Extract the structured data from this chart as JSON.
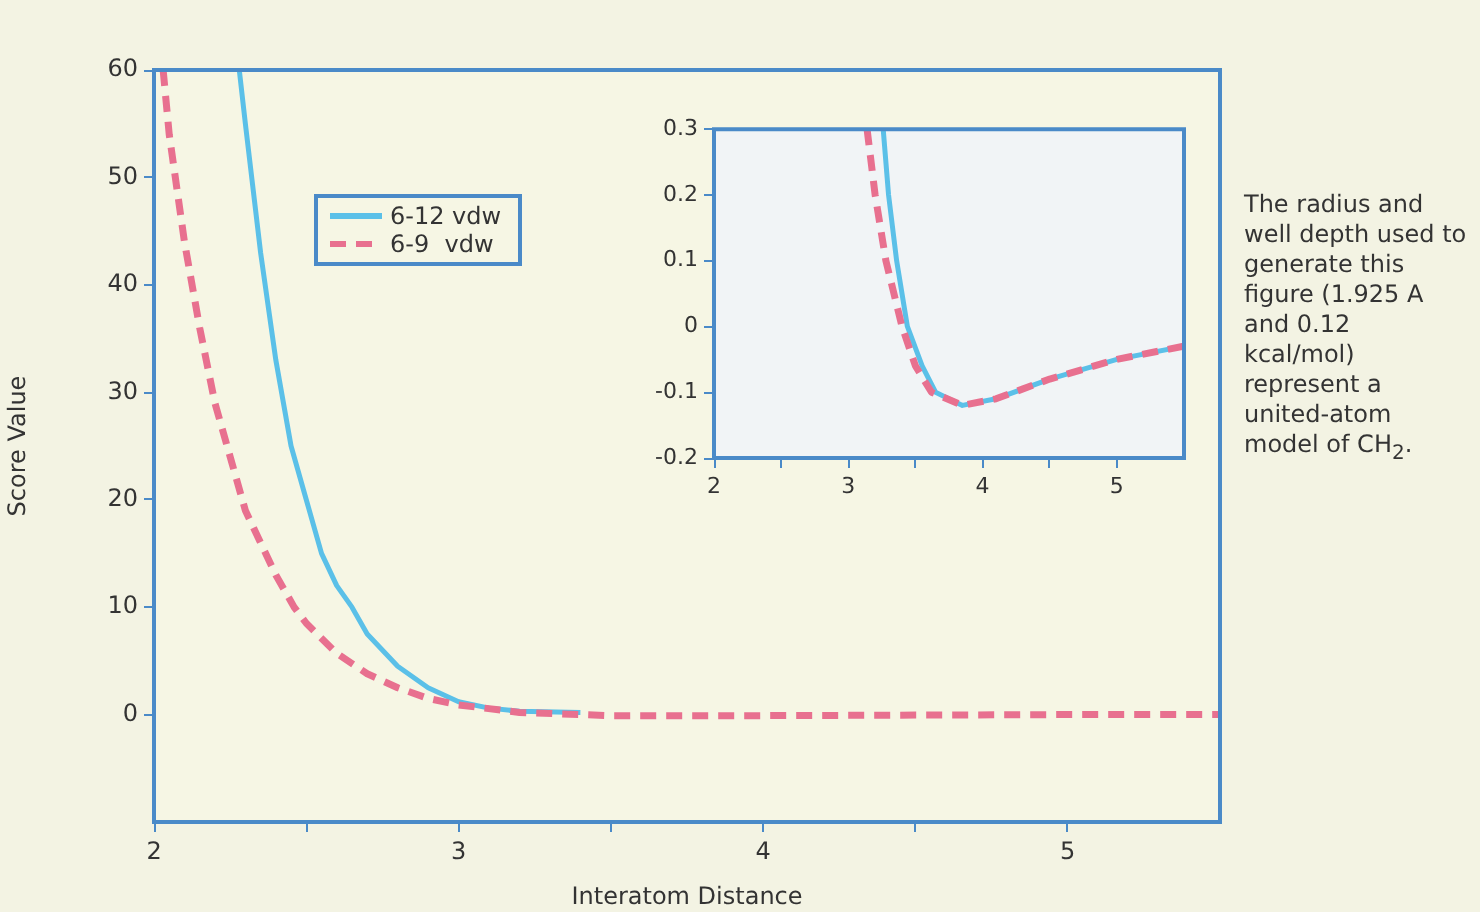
{
  "chart_data": [
    {
      "type": "line",
      "xlabel": "Interatom Distance",
      "ylabel": "Score Value",
      "xlim": [
        2,
        5.5
      ],
      "xticks": [
        2,
        {
          "value": 2.5,
          "label": null
        },
        3,
        {
          "value": 3.5,
          "label": null
        },
        4,
        {
          "value": 4.5,
          "label": null
        },
        5
      ],
      "ylim": [
        -10,
        60
      ],
      "yticks": [
        0,
        10,
        20,
        30,
        40,
        50,
        60
      ],
      "legend": "top left",
      "marker": "none",
      "grid": false,
      "annotations": [
        "The radius and well depth used to generate this figure (1.925 A and 0.12 kcal/mol) represent a united-atom model of CH$_{2}$."
      ],
      "series": [
        {
          "name": "6-12 vdw",
          "color": "#5bc0e8",
          "line_style": "solid",
          "x": [
            2.28,
            2.3,
            2.35,
            2.4,
            2.45,
            2.5,
            2.55,
            2.6,
            2.65,
            2.7,
            2.8,
            2.9,
            3.0,
            3.1,
            3.2,
            3.4
          ],
          "values": [
            60,
            55,
            43,
            33,
            25,
            20,
            15,
            12,
            10,
            7.5,
            4.5,
            2.5,
            1.2,
            0.6,
            0.3,
            0.2
          ]
        },
        {
          "name": "6-9  vdw",
          "color": "#e8708f",
          "line_style": "dashed",
          "x": [
            2.03,
            2.05,
            2.1,
            2.15,
            2.2,
            2.25,
            2.3,
            2.4,
            2.46,
            2.5,
            2.6,
            2.7,
            2.8,
            2.9,
            3.0,
            3.2,
            3.5,
            4.0,
            5.0,
            5.5
          ],
          "values": [
            60,
            54,
            44,
            36,
            29,
            24,
            19,
            13,
            10,
            8.5,
            5.7,
            3.8,
            2.5,
            1.5,
            0.9,
            0.2,
            -0.1,
            -0.1,
            0,
            0
          ]
        }
      ]
    },
    {
      "type": "line",
      "xlim": [
        2,
        5.5
      ],
      "xticks": [
        2,
        {
          "value": 2.5,
          "label": null
        },
        3,
        {
          "value": 3.5,
          "label": null
        },
        4,
        {
          "value": 4.5,
          "label": null
        },
        5
      ],
      "ylim": [
        -0.2,
        0.3
      ],
      "yticks": [
        -0.2,
        -0.1,
        0,
        0.1,
        0.2,
        0.3
      ],
      "marker": "none",
      "grid": false,
      "series": [
        {
          "color": "#5bc0e8",
          "line_style": "solid",
          "x": [
            3.26,
            3.3,
            3.36,
            3.44,
            3.55,
            3.65,
            3.85,
            4.1,
            4.5,
            5.0,
            5.5
          ],
          "values": [
            0.3,
            0.2,
            0.1,
            0,
            -0.06,
            -0.1,
            -0.12,
            -0.11,
            -0.08,
            -0.05,
            -0.03
          ]
        },
        {
          "color": "#e8708f",
          "line_style": "dashed",
          "x": [
            3.14,
            3.2,
            3.28,
            3.4,
            3.5,
            3.62,
            3.85,
            4.1,
            4.5,
            5.0,
            5.5
          ],
          "values": [
            0.3,
            0.2,
            0.1,
            0,
            -0.06,
            -0.1,
            -0.12,
            -0.11,
            -0.08,
            -0.05,
            -0.03
          ]
        }
      ]
    }
  ]
}
